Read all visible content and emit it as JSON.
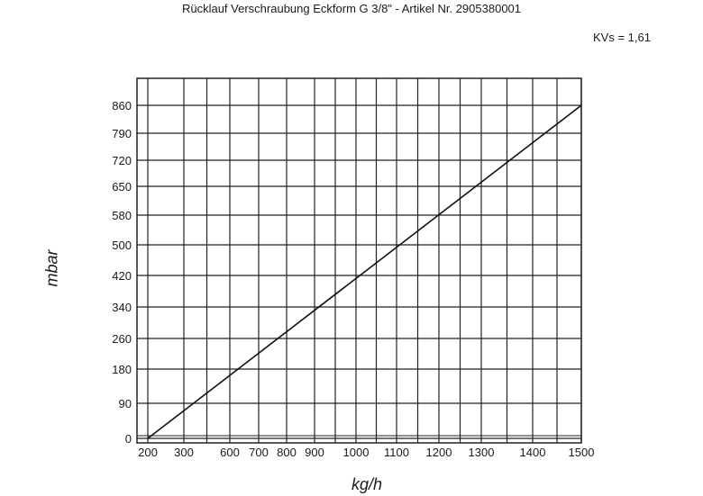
{
  "chart_data": {
    "type": "line",
    "title": "Rücklauf Verschraubung Eckform G 3/8\" - Artikel Nr. 2905380001",
    "annotation": "KVs = 1,61",
    "xlabel": "kg/h",
    "ylabel": "mbar",
    "x_ticks": [
      200,
      300,
      600,
      700,
      800,
      900,
      1000,
      1100,
      1200,
      1300,
      1400,
      1500
    ],
    "y_ticks": [
      0,
      90,
      180,
      260,
      340,
      420,
      500,
      580,
      650,
      720,
      790,
      860
    ],
    "series": [
      {
        "x": [
          200,
          1500
        ],
        "y": [
          0,
          860
        ]
      }
    ],
    "grid": true
  }
}
